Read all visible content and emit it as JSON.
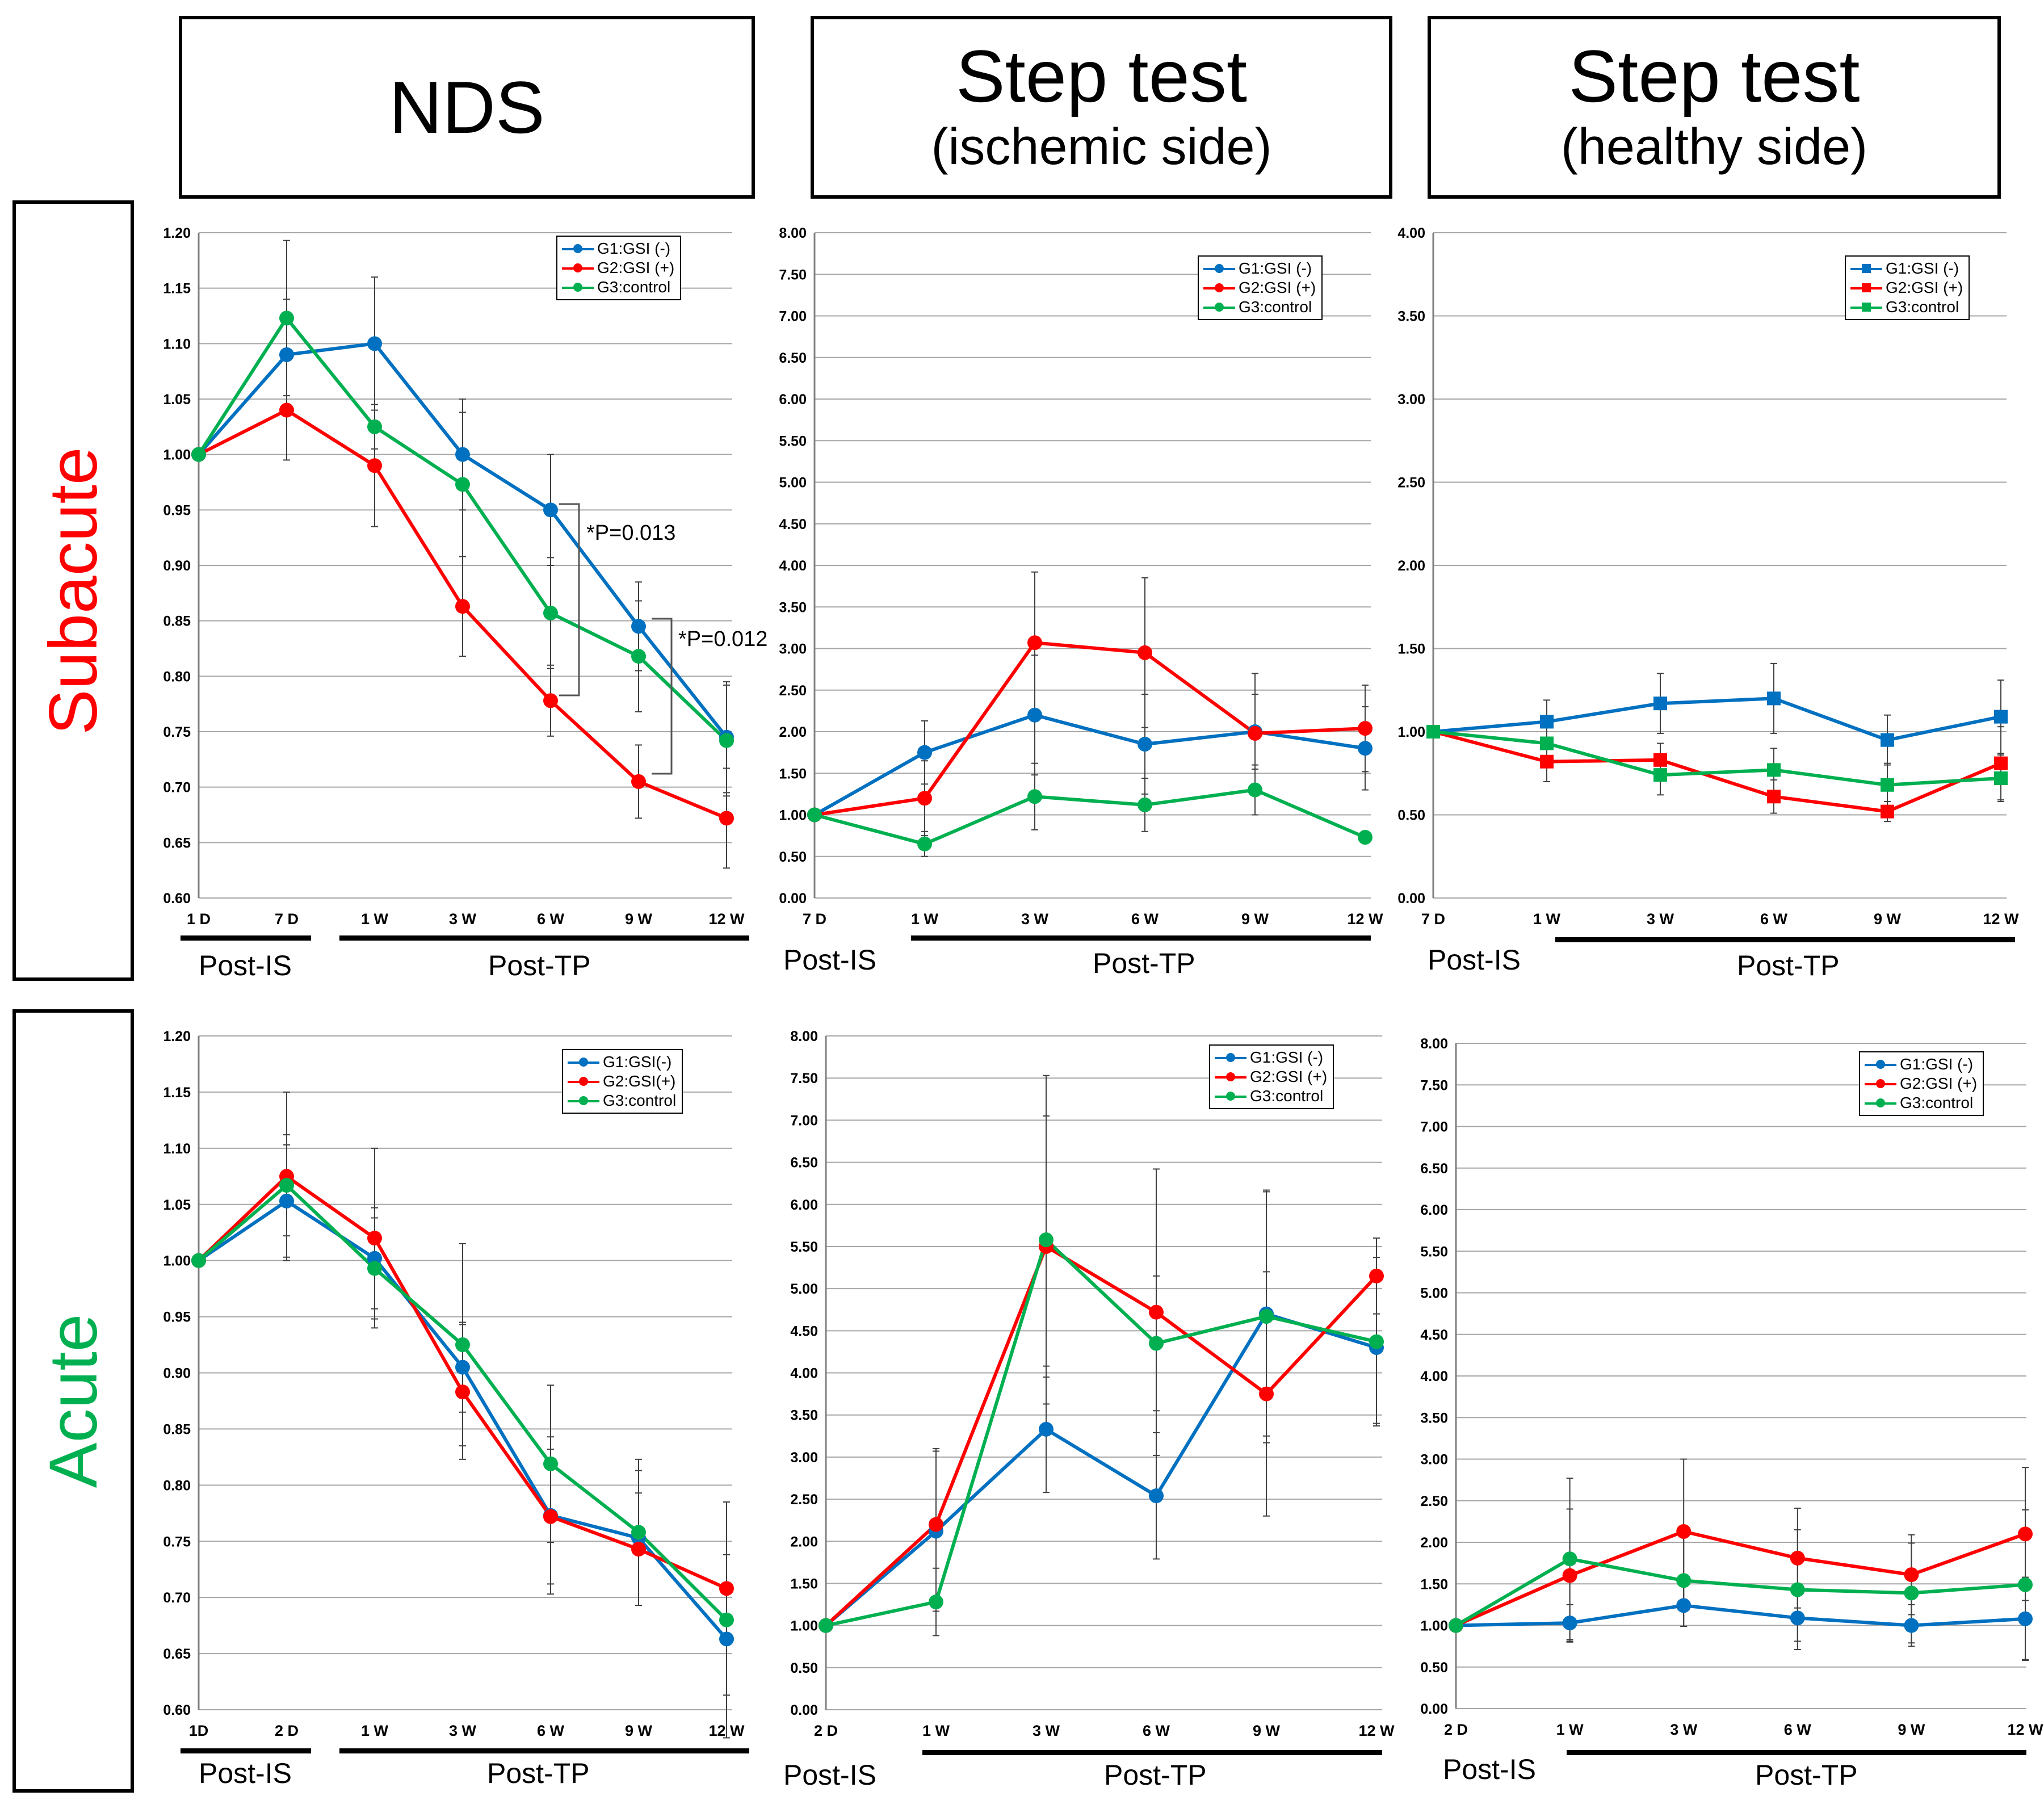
{
  "columns": [
    {
      "title": "NDS",
      "subtitle": ""
    },
    {
      "title": "Step test",
      "subtitle": "(ischemic side)"
    },
    {
      "title": "Step test",
      "subtitle": "(healthy side)"
    }
  ],
  "rows": [
    {
      "label": "Subacute",
      "color": "#ff0000"
    },
    {
      "label": "Acute",
      "color": "#00b050"
    }
  ],
  "phase_labels": {
    "post_is": "Post-IS",
    "post_tp": "Post-TP"
  },
  "colors": {
    "g1": "#0070c0",
    "g2": "#ff0000",
    "g3": "#00b050"
  },
  "significance": {
    "p1": "*P=0.013",
    "p2": "*P=0.012"
  },
  "chart_data": [
    {
      "id": "subacute-nds",
      "type": "line",
      "categories": [
        "1 D",
        "7 D",
        "1 W",
        "3 W",
        "6 W",
        "9 W",
        "12 W"
      ],
      "ylim": [
        0.6,
        1.2
      ],
      "y_ticks": [
        "0.60",
        "0.65",
        "0.70",
        "0.75",
        "0.80",
        "0.85",
        "0.90",
        "0.95",
        "1.00",
        "1.05",
        "1.10",
        "1.15",
        "1.20"
      ],
      "marker": "circle",
      "grid": true,
      "legend": "top-right",
      "series": [
        {
          "name": "G1:GSI (-)",
          "values": [
            1.0,
            1.09,
            1.1,
            1.0,
            0.95,
            0.845,
            0.745
          ],
          "err": [
            0,
            0.05,
            0.06,
            0.05,
            0.05,
            0.04,
            0.05
          ]
        },
        {
          "name": "G2:GSI (+)",
          "values": [
            1.0,
            1.04,
            0.99,
            0.863,
            0.778,
            0.705,
            0.672
          ],
          "err": [
            0,
            0.045,
            0.055,
            0.045,
            0.032,
            0.033,
            0.045
          ]
        },
        {
          "name": "G3:control",
          "values": [
            1.0,
            1.123,
            1.025,
            0.973,
            0.857,
            0.818,
            0.742
          ],
          "err": [
            0,
            0.07,
            0.02,
            0.065,
            0.05,
            0.05,
            0.05
          ]
        }
      ]
    },
    {
      "id": "subacute-step-ischemic",
      "type": "line",
      "categories": [
        "7 D",
        "1 W",
        "3 W",
        "6 W",
        "9 W",
        "12 W"
      ],
      "ylim": [
        0,
        8
      ],
      "y_ticks": [
        "0.00",
        "0.50",
        "1.00",
        "1.50",
        "2.00",
        "2.50",
        "3.00",
        "3.50",
        "4.00",
        "4.50",
        "5.00",
        "5.50",
        "6.00",
        "6.50",
        "7.00",
        "7.50",
        "8.00"
      ],
      "marker": "circle",
      "grid": true,
      "legend": "top-right",
      "series": [
        {
          "name": "G1:GSI (-)",
          "values": [
            1.0,
            1.75,
            2.2,
            1.85,
            2.0,
            1.8
          ],
          "err": [
            0,
            0.38,
            0.72,
            0.6,
            0.45,
            0.5
          ]
        },
        {
          "name": "G2:GSI (+)",
          "values": [
            1.0,
            1.2,
            3.07,
            2.95,
            1.98,
            2.04
          ],
          "err": [
            0,
            0.45,
            0.85,
            0.9,
            0.72,
            0.52
          ]
        },
        {
          "name": "G3:control",
          "values": [
            1.0,
            0.65,
            1.22,
            1.12,
            1.3,
            0.73
          ],
          "err": [
            0,
            0.15,
            0.4,
            0.32,
            0.3,
            0.06
          ]
        }
      ]
    },
    {
      "id": "subacute-step-healthy",
      "type": "line",
      "categories": [
        "7 D",
        "1 W",
        "3 W",
        "6 W",
        "9 W",
        "12 W"
      ],
      "ylim": [
        0,
        4
      ],
      "y_ticks": [
        "0.00",
        "0.50",
        "1.00",
        "1.50",
        "2.00",
        "2.50",
        "3.00",
        "3.50",
        "4.00"
      ],
      "marker": "square",
      "grid": true,
      "legend": "top-right",
      "series": [
        {
          "name": "G1:GSI (-)",
          "values": [
            1.0,
            1.06,
            1.17,
            1.2,
            0.95,
            1.09
          ],
          "err": [
            0,
            0.13,
            0.18,
            0.21,
            0.15,
            0.22
          ]
        },
        {
          "name": "G2:GSI (+)",
          "values": [
            1.0,
            0.82,
            0.83,
            0.61,
            0.52,
            0.81
          ],
          "err": [
            0,
            0.12,
            0.1,
            0.1,
            0.06,
            0.22
          ]
        },
        {
          "name": "G3:control",
          "values": [
            1.0,
            0.93,
            0.74,
            0.77,
            0.68,
            0.72
          ],
          "err": [
            0,
            0.1,
            0.12,
            0.13,
            0.13,
            0.14
          ]
        }
      ]
    },
    {
      "id": "acute-nds",
      "type": "line",
      "categories": [
        "1D",
        "2 D",
        "1 W",
        "3 W",
        "6 W",
        "9 W",
        "12 W"
      ],
      "ylim": [
        0.6,
        1.2
      ],
      "y_ticks": [
        "0.60",
        "0.65",
        "0.70",
        "0.75",
        "0.80",
        "0.85",
        "0.90",
        "0.95",
        "1.00",
        "1.05",
        "1.10",
        "1.15",
        "1.20"
      ],
      "marker": "circle",
      "grid": true,
      "legend": "top-right",
      "series": [
        {
          "name": "G1:GSI(-)",
          "values": [
            1.0,
            1.053,
            1.002,
            0.905,
            0.773,
            0.753,
            0.663
          ],
          "err": [
            0,
            0.05,
            0.045,
            0.04,
            0.07,
            0.06,
            0.05
          ]
        },
        {
          "name": "G2:GSI(+)",
          "values": [
            1.0,
            1.075,
            1.02,
            0.883,
            0.772,
            0.743,
            0.708
          ],
          "err": [
            0,
            0.075,
            0.08,
            0.06,
            0.06,
            0.05,
            0.03
          ]
        },
        {
          "name": "G3:control",
          "values": [
            1.0,
            1.067,
            0.993,
            0.925,
            0.819,
            0.758,
            0.68
          ],
          "err": [
            0,
            0.045,
            0.045,
            0.09,
            0.07,
            0.065,
            0.105
          ]
        }
      ]
    },
    {
      "id": "acute-step-ischemic",
      "type": "line",
      "categories": [
        "2 D",
        "1 W",
        "3 W",
        "6 W",
        "9 W",
        "12 W"
      ],
      "ylim": [
        0,
        8
      ],
      "y_ticks": [
        "0.00",
        "0.50",
        "1.00",
        "1.50",
        "2.00",
        "2.50",
        "3.00",
        "3.50",
        "4.00",
        "4.50",
        "5.00",
        "5.50",
        "6.00",
        "6.50",
        "7.00",
        "7.50",
        "8.00"
      ],
      "marker": "circle",
      "grid": true,
      "legend": "top-right",
      "series": [
        {
          "name": "G1:GSI (-)",
          "values": [
            1.0,
            2.12,
            3.33,
            2.54,
            4.7,
            4.3
          ],
          "err": [
            0,
            0.95,
            0.75,
            0.75,
            1.45,
            0.9
          ]
        },
        {
          "name": "G2:GSI (+)",
          "values": [
            1.0,
            2.2,
            5.5,
            4.72,
            3.75,
            5.15
          ],
          "err": [
            0,
            0.9,
            1.55,
            1.7,
            1.45,
            0.45
          ]
        },
        {
          "name": "G3:control",
          "values": [
            1.0,
            1.28,
            5.58,
            4.35,
            4.67,
            4.37
          ],
          "err": [
            0,
            0.4,
            1.95,
            0.8,
            1.5,
            1.0
          ]
        }
      ]
    },
    {
      "id": "acute-step-healthy",
      "type": "line",
      "categories": [
        "2 D",
        "1 W",
        "3 W",
        "6 W",
        "9 W",
        "12 W"
      ],
      "ylim": [
        0,
        8
      ],
      "y_ticks": [
        "0.00",
        "0.50",
        "1.00",
        "1.50",
        "2.00",
        "2.50",
        "3.00",
        "3.50",
        "4.00",
        "4.50",
        "5.00",
        "5.50",
        "6.00",
        "6.50",
        "7.00",
        "7.50",
        "8.00"
      ],
      "marker": "circle",
      "grid": true,
      "legend": "top-right",
      "series": [
        {
          "name": "G1:GSI (-)",
          "values": [
            1.0,
            1.03,
            1.24,
            1.09,
            1.0,
            1.08
          ],
          "err": [
            0,
            0.22,
            0.25,
            0.28,
            0.25,
            0.5
          ]
        },
        {
          "name": "G2:GSI (+)",
          "values": [
            1.0,
            1.6,
            2.13,
            1.81,
            1.61,
            2.1
          ],
          "err": [
            0,
            0.8,
            0.87,
            0.6,
            0.48,
            0.8
          ]
        },
        {
          "name": "G3:control",
          "values": [
            1.0,
            1.8,
            1.54,
            1.43,
            1.39,
            1.49
          ],
          "err": [
            0,
            0.97,
            0.55,
            0.72,
            0.6,
            0.9
          ]
        }
      ]
    }
  ]
}
